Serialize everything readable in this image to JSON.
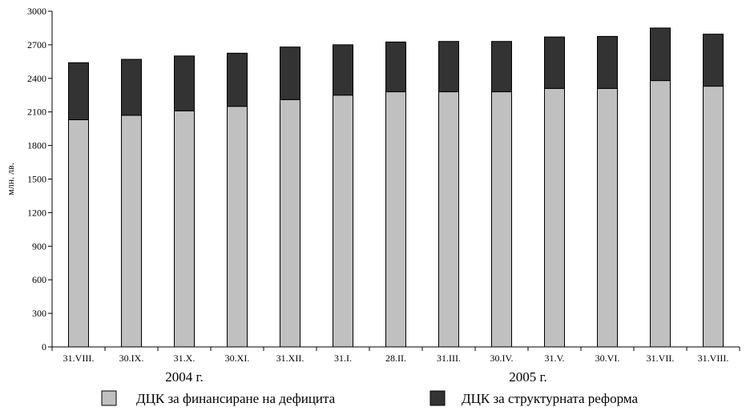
{
  "chart_data": {
    "type": "bar",
    "stacked": true,
    "ylabel": "млн. лв.",
    "ylim": [
      0,
      3000
    ],
    "yticks": [
      0,
      300,
      600,
      900,
      1200,
      1500,
      1800,
      2100,
      2400,
      2700,
      3000
    ],
    "categories": [
      "31.VIII.",
      "30.IX.",
      "31.X.",
      "30.XI.",
      "31.XII.",
      "31.I.",
      "28.II.",
      "31.III.",
      "30.IV.",
      "31.V.",
      "30.VI.",
      "31.VII.",
      "31.VIII."
    ],
    "year_groups": [
      {
        "label": "2004 г.",
        "from": 0,
        "to": 4
      },
      {
        "label": "2005 г.",
        "from": 5,
        "to": 12
      }
    ],
    "series": [
      {
        "name": "ДЦК за финансиране на дефицита",
        "color": "#c0c0c0",
        "values": [
          2030,
          2070,
          2110,
          2150,
          2210,
          2250,
          2280,
          2280,
          2280,
          2310,
          2310,
          2380,
          2330
        ]
      },
      {
        "name": "ДЦК за структурната реформа",
        "color": "#333333",
        "values": [
          510,
          500,
          490,
          475,
          470,
          450,
          445,
          450,
          450,
          460,
          465,
          470,
          465
        ]
      }
    ],
    "grid": false,
    "legend_position": "bottom"
  }
}
